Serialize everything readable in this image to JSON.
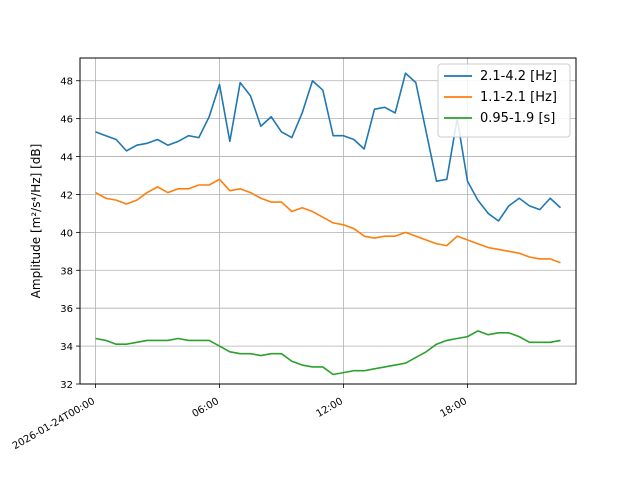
{
  "chart_data": {
    "type": "line",
    "xlabel": "",
    "ylabel": "Amplitude [m²/s⁴/Hz] [dB]",
    "ylim": [
      32,
      49.2
    ],
    "xlim_hours": [
      -0.75,
      23.25
    ],
    "grid": true,
    "legend_position": "top-right",
    "x_ticks": [
      {
        "hour": 0,
        "label": "2026-01-24T00:00"
      },
      {
        "hour": 6,
        "label": "06:00"
      },
      {
        "hour": 12,
        "label": "12:00"
      },
      {
        "hour": 18,
        "label": "18:00"
      }
    ],
    "y_ticks": [
      32,
      34,
      36,
      38,
      40,
      42,
      44,
      46,
      48
    ],
    "x_hours": [
      0,
      0.5,
      1,
      1.5,
      2,
      2.5,
      3,
      3.5,
      4,
      4.5,
      5,
      5.5,
      6,
      6.5,
      7,
      7.5,
      8,
      8.5,
      9,
      9.5,
      10,
      10.5,
      11,
      11.5,
      12,
      12.5,
      13,
      13.5,
      14,
      14.5,
      15,
      15.5,
      16,
      16.5,
      17,
      17.5,
      18,
      18.5,
      19,
      19.5,
      20,
      20.5,
      21,
      21.5,
      22,
      22.5
    ],
    "series": [
      {
        "name": "2.1-4.2 [Hz]",
        "color": "#1f77b4",
        "values": [
          45.3,
          45.1,
          44.9,
          44.3,
          44.6,
          44.7,
          44.9,
          44.6,
          44.8,
          45.1,
          45.0,
          46.1,
          47.8,
          44.8,
          47.9,
          47.2,
          45.6,
          46.1,
          45.3,
          45.0,
          46.3,
          48.0,
          47.5,
          45.1,
          45.1,
          44.9,
          44.4,
          46.5,
          46.6,
          46.3,
          48.4,
          47.9,
          45.3,
          42.7,
          42.8,
          46.0,
          42.7,
          41.7,
          41.0,
          40.6,
          41.4,
          41.8,
          41.4,
          41.2,
          41.8,
          41.3
        ]
      },
      {
        "name": "1.1-2.1 [Hz]",
        "color": "#ff7f0e",
        "values": [
          42.1,
          41.8,
          41.7,
          41.5,
          41.7,
          42.1,
          42.4,
          42.1,
          42.3,
          42.3,
          42.5,
          42.5,
          42.8,
          42.2,
          42.3,
          42.1,
          41.8,
          41.6,
          41.6,
          41.1,
          41.3,
          41.1,
          40.8,
          40.5,
          40.4,
          40.2,
          39.8,
          39.7,
          39.8,
          39.8,
          40.0,
          39.8,
          39.6,
          39.4,
          39.3,
          39.8,
          39.6,
          39.4,
          39.2,
          39.1,
          39.0,
          38.9,
          38.7,
          38.6,
          38.6,
          38.4
        ]
      },
      {
        "name": "0.95-1.9 [s]",
        "color": "#2ca02c",
        "values": [
          34.4,
          34.3,
          34.1,
          34.1,
          34.2,
          34.3,
          34.3,
          34.3,
          34.4,
          34.3,
          34.3,
          34.3,
          34.0,
          33.7,
          33.6,
          33.6,
          33.5,
          33.6,
          33.6,
          33.2,
          33.0,
          32.9,
          32.9,
          32.5,
          32.6,
          32.7,
          32.7,
          32.8,
          32.9,
          33.0,
          33.1,
          33.4,
          33.7,
          34.1,
          34.3,
          34.4,
          34.5,
          34.8,
          34.6,
          34.7,
          34.7,
          34.5,
          34.2,
          34.2,
          34.2,
          34.3
        ]
      }
    ]
  }
}
